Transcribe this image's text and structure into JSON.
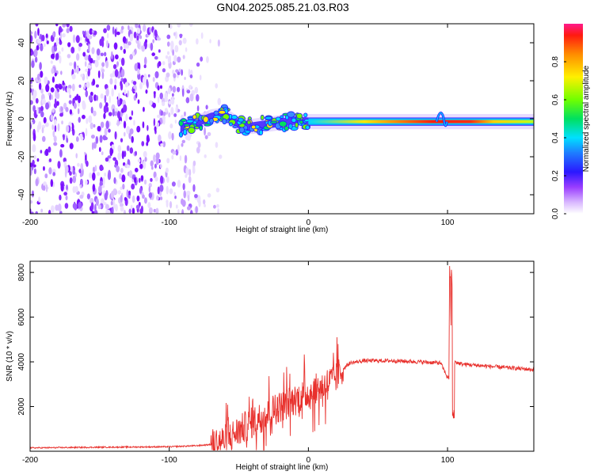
{
  "title": "GN04.2025.085.21.03.R03",
  "chart_data": [
    {
      "type": "heatmap",
      "xlabel": "Height of straight line (km)",
      "ylabel": "Frequency (Hz)",
      "xlim": [
        -200,
        162
      ],
      "ylim": [
        -50,
        50
      ],
      "xticks": [
        "-200",
        "-100",
        "0",
        "100"
      ],
      "yticks": [
        "40",
        "20",
        "0",
        "-20",
        "-40"
      ],
      "colorbar": {
        "label": "Normalized spectral amplitude",
        "ticks": [
          "0.0",
          "0.2",
          "0.4",
          "0.6",
          "0.8"
        ],
        "range": [
          0,
          1
        ]
      },
      "features": {
        "noise_region_km": [
          -200,
          -70
        ],
        "signal_track": [
          {
            "x": -92,
            "freq": -5,
            "amp": 0.4
          },
          {
            "x": -80,
            "freq": -2,
            "amp": 0.3
          },
          {
            "x": -70,
            "freq": 1,
            "amp": 0.45
          },
          {
            "x": -60,
            "freq": 2,
            "amp": 0.4
          },
          {
            "x": -50,
            "freq": -3,
            "amp": 0.35
          },
          {
            "x": -40,
            "freq": -4,
            "amp": 0.4
          },
          {
            "x": -30,
            "freq": -3,
            "amp": 0.6
          },
          {
            "x": -20,
            "freq": -2,
            "amp": 0.55
          },
          {
            "x": -10,
            "freq": -1,
            "amp": 0.6
          },
          {
            "x": 0,
            "freq": -1.5,
            "amp": 0.75
          },
          {
            "x": 20,
            "freq": -1.5,
            "amp": 0.85
          },
          {
            "x": 50,
            "freq": -1.5,
            "amp": 0.95
          },
          {
            "x": 90,
            "freq": -1.5,
            "amp": 0.95
          },
          {
            "x": 100,
            "freq": -1.5,
            "amp": 0.7
          },
          {
            "x": 130,
            "freq": -1.5,
            "amp": 0.55
          },
          {
            "x": 162,
            "freq": -1.5,
            "amp": 0.5
          }
        ]
      }
    },
    {
      "type": "line",
      "xlabel": "Height of straight line (km)",
      "ylabel": "SNR (10 * v/v)",
      "xlim": [
        -200,
        162
      ],
      "ylim": [
        0,
        8500
      ],
      "xticks": [
        "-200",
        "-100",
        "0",
        "100"
      ],
      "yticks": [
        "8000",
        "6000",
        "4000",
        "2000"
      ],
      "color": "#e8302c",
      "series": [
        {
          "name": "SNR",
          "x": [
            -200,
            -150,
            -100,
            -80,
            -70,
            -60,
            -50,
            -40,
            -30,
            -20,
            -10,
            0,
            10,
            20,
            25,
            30,
            40,
            60,
            80,
            95,
            100,
            103,
            105,
            110,
            130,
            162
          ],
          "y": [
            150,
            180,
            200,
            250,
            300,
            500,
            900,
            1300,
            1700,
            2000,
            2300,
            2600,
            2900,
            3300,
            3700,
            3950,
            4050,
            4050,
            4000,
            3950,
            3300,
            3200,
            4000,
            3900,
            3800,
            3650
          ]
        }
      ],
      "annotations": [
        {
          "x": 102,
          "y": 8400,
          "note": "spike"
        },
        {
          "x": 104,
          "y": 1200,
          "note": "dip"
        }
      ]
    }
  ]
}
